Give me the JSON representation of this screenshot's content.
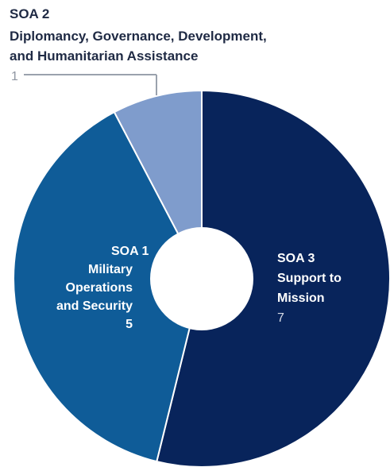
{
  "chart_data": {
    "type": "pie",
    "variant": "donut",
    "slices": [
      {
        "label_lines": [
          "SOA 2",
          "Diplomancy, Governance, Development,",
          "and Humanitarian Assistance"
        ],
        "value": 1,
        "color": "#7f9ccc"
      },
      {
        "label_lines": [
          "SOA 1",
          "Military",
          "Operations",
          "and Security"
        ],
        "value": 5,
        "color": "#0f5c98"
      },
      {
        "label_lines": [
          "SOA 3",
          "Support to",
          "Mission"
        ],
        "value": 7,
        "color": "#08245b"
      }
    ],
    "legend": "none",
    "title": "",
    "center_hole_color": "#ffffff",
    "leader_line_color": "#9aa2ad"
  }
}
